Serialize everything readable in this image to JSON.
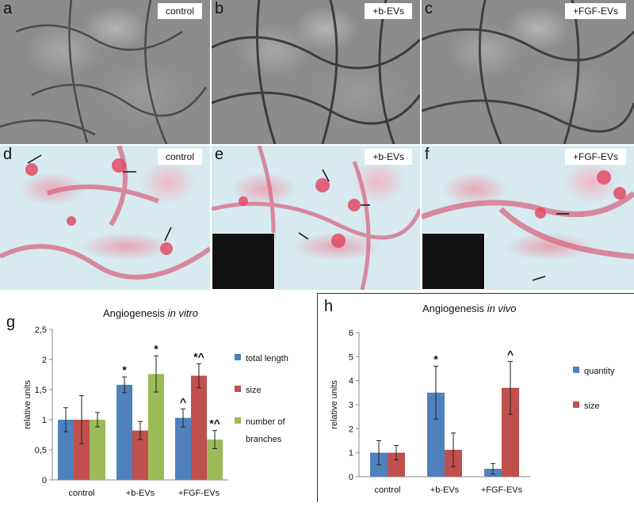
{
  "panels": {
    "a": {
      "letter": "a",
      "label": "control"
    },
    "b": {
      "letter": "b",
      "label": "+b-EVs"
    },
    "c": {
      "letter": "c",
      "label": "+FGF-EVs"
    },
    "d": {
      "letter": "d",
      "label": "control"
    },
    "e": {
      "letter": "e",
      "label": "+b-EVs"
    },
    "f": {
      "letter": "f",
      "label": "+FGF-EVs"
    }
  },
  "chart_data": [
    {
      "panel": "g",
      "type": "bar",
      "title": "Angiogenesis",
      "title_italic": "in vitro",
      "ylabel": "relative units",
      "ylim": [
        0,
        2.5
      ],
      "yticks": [
        "0",
        "0,5",
        "1",
        "1,5",
        "2",
        "2,5"
      ],
      "ytick_values": [
        0,
        0.5,
        1,
        1.5,
        2,
        2.5
      ],
      "categories": [
        "control",
        "+b-EVs",
        "+FGF-EVs"
      ],
      "legend_position": "right",
      "series": [
        {
          "name": "total length",
          "color": "#4f81bd",
          "values": [
            1.0,
            1.58,
            1.03
          ],
          "errors": [
            0.2,
            0.13,
            0.15
          ],
          "marks": [
            "",
            "*",
            "^"
          ]
        },
        {
          "name": "size",
          "color": "#c0504d",
          "values": [
            1.0,
            0.82,
            1.73
          ],
          "errors": [
            0.4,
            0.15,
            0.2
          ],
          "marks": [
            "",
            "",
            "*^"
          ]
        },
        {
          "name": "number of branches",
          "color": "#9bbb59",
          "values": [
            1.0,
            1.76,
            0.67
          ],
          "errors": [
            0.12,
            0.3,
            0.15
          ],
          "marks": [
            "",
            "*",
            "*^"
          ]
        }
      ]
    },
    {
      "panel": "h",
      "type": "bar",
      "title": "Angiogenesis",
      "title_italic": "in vivo",
      "ylabel": "relative units",
      "ylim": [
        0,
        6
      ],
      "yticks": [
        "0",
        "1",
        "2",
        "3",
        "4",
        "5",
        "6"
      ],
      "ytick_values": [
        0,
        1,
        2,
        3,
        4,
        5,
        6
      ],
      "categories": [
        "control",
        "+b-EVs",
        "+FGF-EVs"
      ],
      "legend_position": "right",
      "series": [
        {
          "name": "quantity",
          "color": "#4f81bd",
          "values": [
            1.0,
            3.5,
            0.33
          ],
          "errors": [
            0.5,
            1.1,
            0.22
          ],
          "marks": [
            "",
            "*",
            ""
          ]
        },
        {
          "name": "size",
          "color": "#c0504d",
          "values": [
            1.0,
            1.12,
            3.7
          ],
          "errors": [
            0.3,
            0.7,
            1.1
          ],
          "marks": [
            "",
            "",
            "^"
          ]
        }
      ]
    }
  ]
}
